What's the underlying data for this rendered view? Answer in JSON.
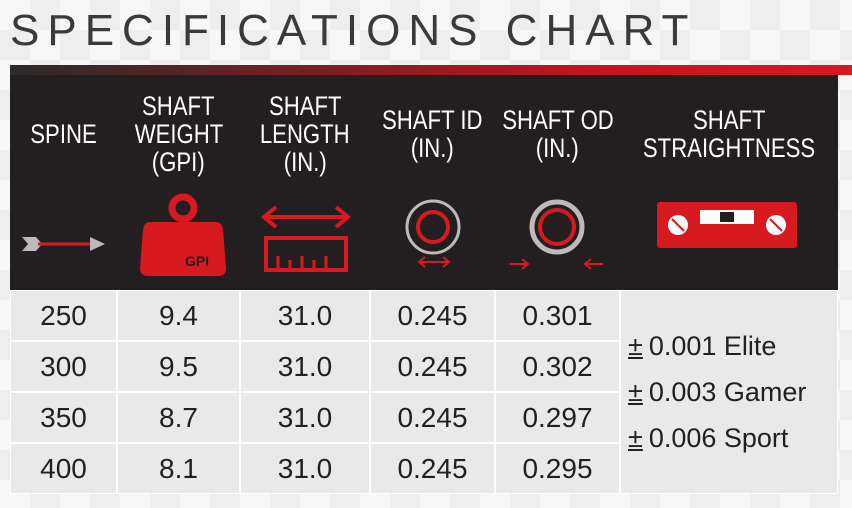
{
  "title": "SPECIFICATIONS CHART",
  "table": {
    "headers": [
      [
        "SPINE"
      ],
      [
        "SHAFT",
        "WEIGHT",
        "(GPI)"
      ],
      [
        "SHAFT",
        "LENGTH",
        "(IN.)"
      ],
      [
        "SHAFT ID",
        "(IN.)"
      ],
      [
        "SHAFT OD",
        "(IN.)"
      ],
      [
        "SHAFT",
        "STRAIGHTNESS"
      ]
    ],
    "weight_icon_label": "GPI",
    "rows": [
      [
        "250",
        "9.4",
        "31.0",
        "0.245",
        "0.301"
      ],
      [
        "300",
        "9.5",
        "31.0",
        "0.245",
        "0.302"
      ],
      [
        "350",
        "8.7",
        "31.0",
        "0.245",
        "0.297"
      ],
      [
        "400",
        "8.1",
        "31.0",
        "0.245",
        "0.295"
      ]
    ],
    "straightness": [
      {
        "symbol": "±",
        "text": "0.001 Elite"
      },
      {
        "symbol": "±",
        "text": "0.003 Gamer"
      },
      {
        "symbol": "±",
        "text": "0.006 Sport"
      }
    ]
  }
}
